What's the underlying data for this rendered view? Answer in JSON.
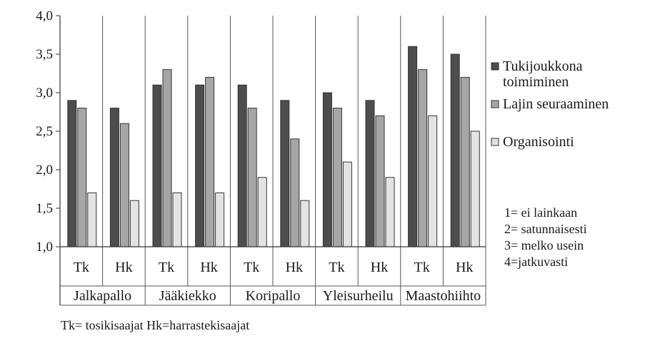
{
  "chart_data": {
    "type": "bar",
    "ylim": [
      1.0,
      4.0
    ],
    "y_ticks": [
      "1,0",
      "1,5",
      "2,0",
      "2,5",
      "3,0",
      "3,5",
      "4,0"
    ],
    "y_tick_values": [
      1.0,
      1.5,
      2.0,
      2.5,
      3.0,
      3.5,
      4.0
    ],
    "grid": "vertical separators between categories",
    "categories": [
      {
        "group": "Jalkapallo",
        "sub": "Tk"
      },
      {
        "group": "Jalkapallo",
        "sub": "Hk"
      },
      {
        "group": "Jääkiekko",
        "sub": "Tk"
      },
      {
        "group": "Jääkiekko",
        "sub": "Hk"
      },
      {
        "group": "Koripallo",
        "sub": "Tk"
      },
      {
        "group": "Koripallo",
        "sub": "Hk"
      },
      {
        "group": "Yleisurheilu",
        "sub": "Tk"
      },
      {
        "group": "Yleisurheilu",
        "sub": "Hk"
      },
      {
        "group": "Maastohiihto",
        "sub": "Tk"
      },
      {
        "group": "Maastohiihto",
        "sub": "Hk"
      }
    ],
    "groups": [
      "Jalkapallo",
      "Jääkiekko",
      "Koripallo",
      "Yleisurheilu",
      "Maastohiihto"
    ],
    "series": [
      {
        "name": "Tukijoukkona toimiminen",
        "name_lines": [
          "Tukijoukkona",
          "toimiminen"
        ],
        "color": "#4d4d4d",
        "values": [
          2.9,
          2.8,
          3.1,
          3.1,
          3.1,
          2.9,
          3.0,
          2.9,
          3.6,
          3.5
        ]
      },
      {
        "name": "Lajin seuraaminen",
        "name_lines": [
          "Lajin seuraaminen"
        ],
        "color": "#a6a6a6",
        "values": [
          2.8,
          2.6,
          3.3,
          3.2,
          2.8,
          2.4,
          2.8,
          2.7,
          3.3,
          3.2
        ]
      },
      {
        "name": "Organisointi",
        "name_lines": [
          "Organisointi"
        ],
        "color": "#e3e3e3",
        "values": [
          1.7,
          1.6,
          1.7,
          1.7,
          1.9,
          1.6,
          2.1,
          1.9,
          2.7,
          2.5
        ]
      }
    ],
    "legend_placement": "right",
    "scale_note": [
      "1= ei lainkaan",
      "2= satunnaisesti",
      "3= melko usein",
      "4=jatkuvasti"
    ],
    "footnote": "Tk= tosikisaajat  Hk=harrastekisaajat"
  }
}
